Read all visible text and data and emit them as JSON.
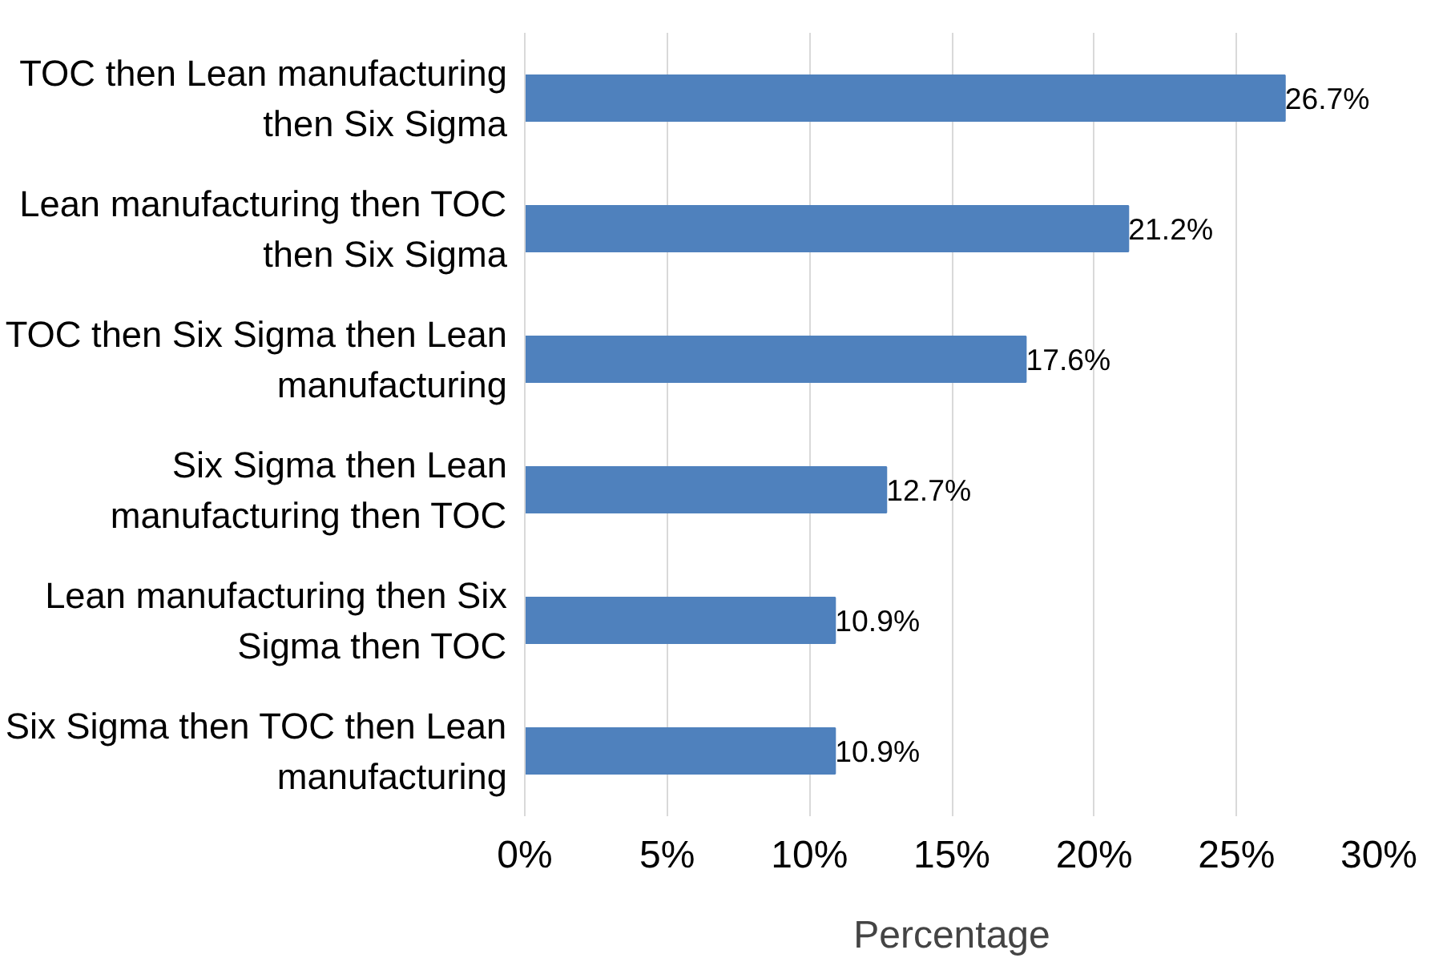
{
  "chart_data": {
    "type": "bar",
    "orientation": "horizontal",
    "xlabel": "Percentage",
    "categories": [
      "TOC then Lean manufacturing then Six Sigma",
      "Lean manufacturing then TOC then Six Sigma",
      "TOC then Six Sigma then Lean manufacturing",
      "Six Sigma then Lean manufacturing then TOC",
      "Lean manufacturing then Six Sigma then TOC",
      "Six Sigma then TOC then Lean manufacturing"
    ],
    "values": [
      26.7,
      21.2,
      17.6,
      12.7,
      10.9,
      10.9
    ],
    "value_labels": [
      "26.7%",
      "21.2%",
      "17.6%",
      "12.7%",
      "10.9%",
      "10.9%"
    ],
    "color": "#4f81bd",
    "xlim": [
      0,
      30
    ],
    "xticks": [
      {
        "value": 0,
        "label": "0%"
      },
      {
        "value": 5,
        "label": "5%"
      },
      {
        "value": 10,
        "label": "10%"
      },
      {
        "value": 15,
        "label": "15%"
      },
      {
        "value": 20,
        "label": "20%"
      },
      {
        "value": 25,
        "label": "25%"
      },
      {
        "value": 30,
        "label": "30%"
      }
    ],
    "grid": "x"
  }
}
